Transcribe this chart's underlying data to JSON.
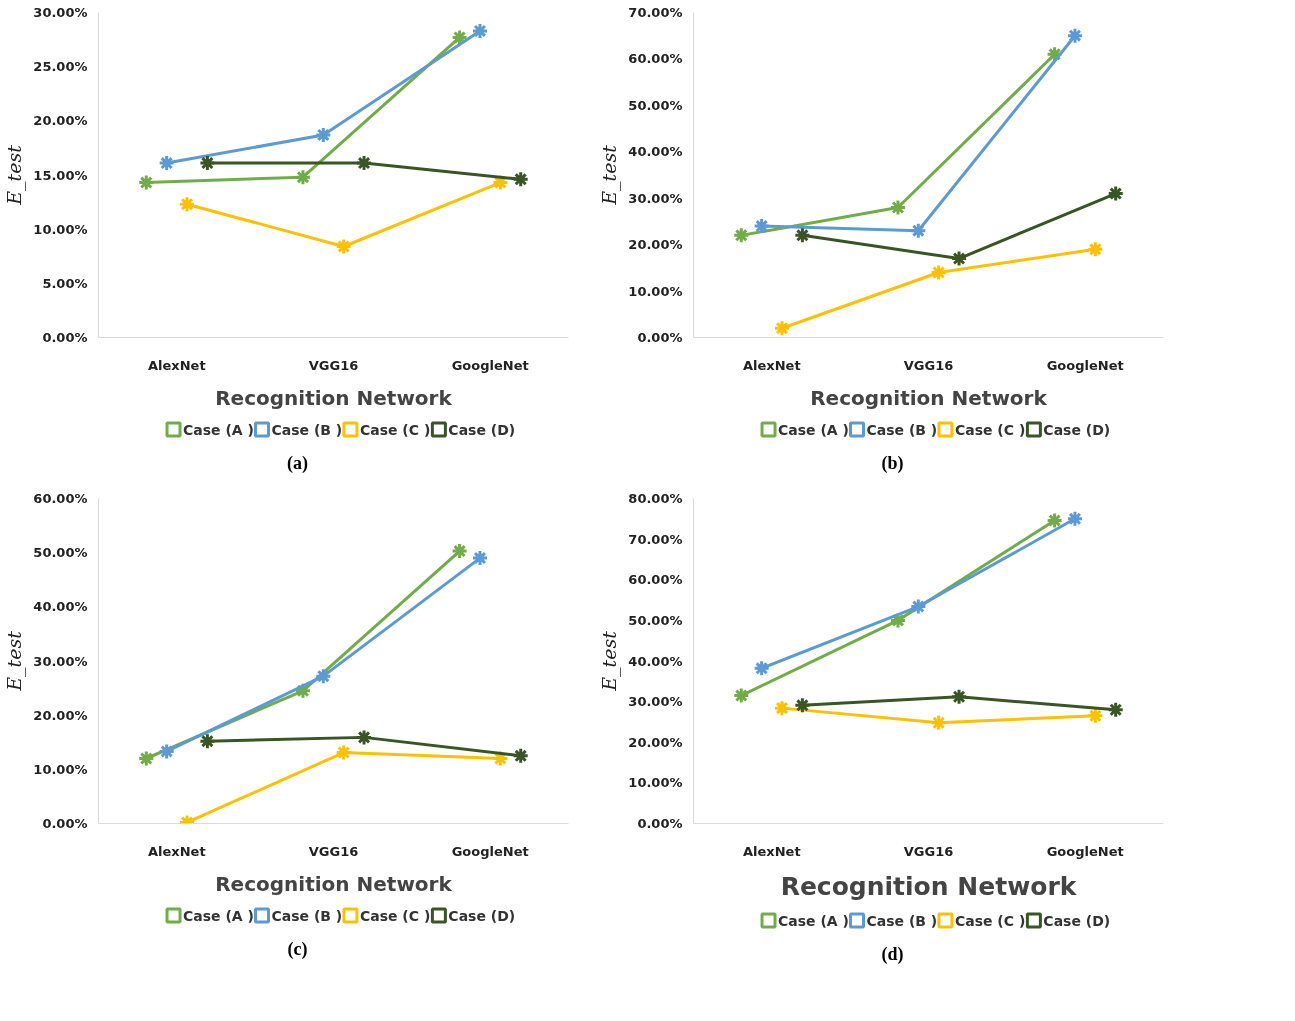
{
  "chart_data": [
    {
      "type": "line",
      "ylabel": "E_test",
      "xlabel": "Recognition Network",
      "annotations": [
        "(a)"
      ],
      "marker": "cross",
      "grid": false,
      "legend": "bottom",
      "categories": [
        "AlexNet",
        "VGG16",
        "GoogleNet"
      ],
      "ylim": [
        0,
        30
      ],
      "yticks": [
        {
          "value": 0,
          "label": "0.00%"
        },
        {
          "value": 5,
          "label": "5.00%"
        },
        {
          "value": 10,
          "label": "10.00%"
        },
        {
          "value": 15,
          "label": "15.00%"
        },
        {
          "value": 20,
          "label": "20.00%"
        },
        {
          "value": 25,
          "label": "25.00%"
        },
        {
          "value": 30,
          "label": "30.00%"
        }
      ],
      "series": [
        {
          "name": "Case (A )",
          "color": "#70ad47",
          "values": [
            14.3,
            14.8,
            27.7
          ]
        },
        {
          "name": "Case (B )",
          "color": "#5b9bd5",
          "values": [
            16.1,
            18.7,
            28.3
          ]
        },
        {
          "name": "Case (C )",
          "color": "#ffc000",
          "values": [
            12.3,
            8.4,
            14.3
          ]
        },
        {
          "name": "Case (D)",
          "color": "#375623",
          "values": [
            16.1,
            16.1,
            14.6
          ]
        }
      ]
    },
    {
      "type": "line",
      "ylabel": "E_test",
      "xlabel": "Recognition Network",
      "annotations": [
        "(b)"
      ],
      "marker": "cross",
      "grid": false,
      "legend": "bottom",
      "categories": [
        "AlexNet",
        "VGG16",
        "GoogleNet"
      ],
      "ylim": [
        0,
        70
      ],
      "yticks": [
        {
          "value": 0,
          "label": "0.00%"
        },
        {
          "value": 10,
          "label": "10.00%"
        },
        {
          "value": 20,
          "label": "20.00%"
        },
        {
          "value": 30,
          "label": "30.00%"
        },
        {
          "value": 40,
          "label": "40.00%"
        },
        {
          "value": 50,
          "label": "50.00%"
        },
        {
          "value": 60,
          "label": "60.00%"
        },
        {
          "value": 70,
          "label": "70.00%"
        }
      ],
      "series": [
        {
          "name": "Case (A )",
          "color": "#70ad47",
          "values": [
            22,
            28,
            61
          ]
        },
        {
          "name": "Case (B )",
          "color": "#5b9bd5",
          "values": [
            24,
            23,
            65
          ]
        },
        {
          "name": "Case (C )",
          "color": "#ffc000",
          "values": [
            2,
            14,
            19
          ]
        },
        {
          "name": "Case (D)",
          "color": "#375623",
          "values": [
            22,
            17,
            31
          ]
        }
      ]
    },
    {
      "type": "line",
      "ylabel": "E_test",
      "xlabel": "Recognition Network",
      "annotations": [
        "(c)"
      ],
      "marker": "cross",
      "grid": false,
      "legend": "bottom",
      "categories": [
        "AlexNet",
        "VGG16",
        "GoogleNet"
      ],
      "ylim": [
        0,
        60
      ],
      "yticks": [
        {
          "value": 0,
          "label": "0.00%"
        },
        {
          "value": 10,
          "label": "10.00%"
        },
        {
          "value": 20,
          "label": "20.00%"
        },
        {
          "value": 30,
          "label": "30.00%"
        },
        {
          "value": 40,
          "label": "40.00%"
        },
        {
          "value": 50,
          "label": "50.00%"
        },
        {
          "value": 60,
          "label": "60.00%"
        }
      ],
      "series": [
        {
          "name": "Case (A )",
          "color": "#70ad47",
          "values": [
            12,
            24.5,
            50.3
          ]
        },
        {
          "name": "Case (B )",
          "color": "#5b9bd5",
          "values": [
            13.3,
            27.2,
            49
          ]
        },
        {
          "name": "Case (C )",
          "color": "#ffc000",
          "values": [
            0.2,
            13.1,
            12
          ]
        },
        {
          "name": "Case (D)",
          "color": "#375623",
          "values": [
            15.2,
            15.9,
            12.5
          ]
        }
      ]
    },
    {
      "type": "line",
      "ylabel": "E_test",
      "xlabel": "Recognition Network",
      "annotations": [
        "(d)"
      ],
      "marker": "cross",
      "grid": false,
      "legend": "bottom",
      "categories": [
        "AlexNet",
        "VGG16",
        "GoogleNet"
      ],
      "ylim": [
        0,
        80
      ],
      "yticks": [
        {
          "value": 0,
          "label": "0.00%"
        },
        {
          "value": 10,
          "label": "10.00%"
        },
        {
          "value": 20,
          "label": "20.00%"
        },
        {
          "value": 30,
          "label": "30.00%"
        },
        {
          "value": 40,
          "label": "40.00%"
        },
        {
          "value": 50,
          "label": "50.00%"
        },
        {
          "value": 60,
          "label": "60.00%"
        },
        {
          "value": 70,
          "label": "70.00%"
        },
        {
          "value": 80,
          "label": "80.00%"
        }
      ],
      "series": [
        {
          "name": "Case (A )",
          "color": "#70ad47",
          "values": [
            31.5,
            50,
            74.6
          ]
        },
        {
          "name": "Case (B )",
          "color": "#5b9bd5",
          "values": [
            38.2,
            53.4,
            75
          ]
        },
        {
          "name": "Case (C )",
          "color": "#ffc000",
          "values": [
            28.4,
            24.8,
            26.5
          ]
        },
        {
          "name": "Case (D)",
          "color": "#375623",
          "values": [
            29.1,
            31.2,
            28
          ]
        }
      ]
    }
  ]
}
